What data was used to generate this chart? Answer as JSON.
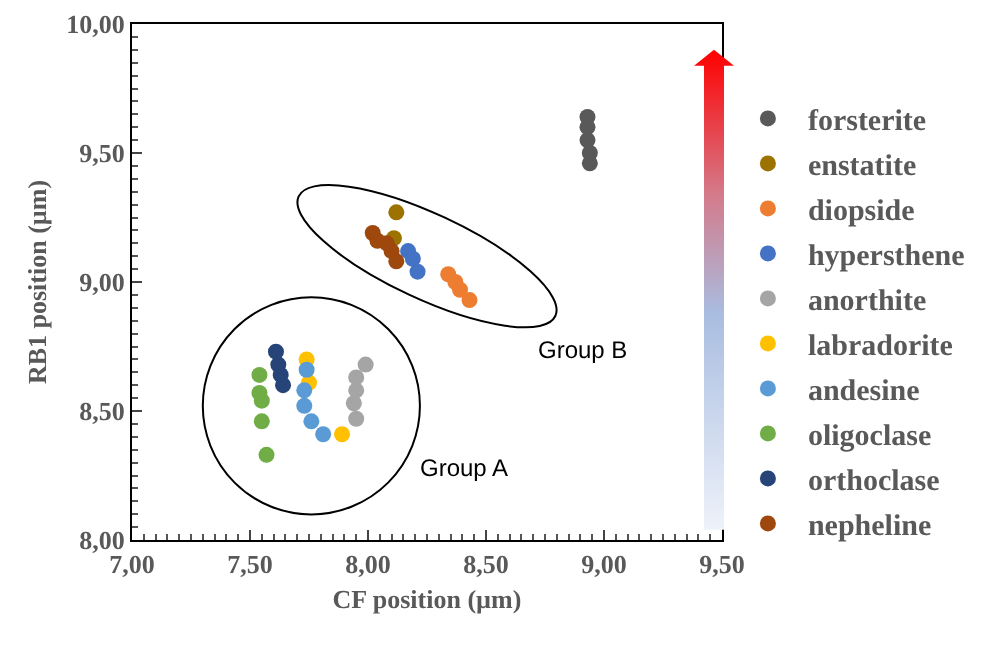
{
  "chart_data": {
    "type": "scatter",
    "xlabel": "CF position (µm)",
    "ylabel": "RB1 position (µm)",
    "xlim": [
      7,
      9.5
    ],
    "ylim": [
      8,
      10
    ],
    "xticks": [
      {
        "value": 7,
        "label": "7,00"
      },
      {
        "value": 7.5,
        "label": "7,50"
      },
      {
        "value": 8,
        "label": "8,00"
      },
      {
        "value": 8.5,
        "label": "8,50"
      },
      {
        "value": 9,
        "label": "9,00"
      },
      {
        "value": 9.5,
        "label": "9,50"
      }
    ],
    "yticks": [
      {
        "value": 8,
        "label": "8,00"
      },
      {
        "value": 8.5,
        "label": "8,50"
      },
      {
        "value": 9,
        "label": "9,00"
      },
      {
        "value": 9.5,
        "label": "9,50"
      },
      {
        "value": 10,
        "label": "10,00"
      }
    ],
    "grid": false,
    "legend": "right",
    "marker": "circle",
    "annotations": [
      "Group A",
      "Group B"
    ],
    "series": [
      {
        "name": "forsterite",
        "color": "#595959",
        "x": [
          8.93,
          8.93,
          8.93,
          8.94,
          8.94
        ],
        "values": [
          9.64,
          9.6,
          9.55,
          9.5,
          9.46
        ]
      },
      {
        "name": "enstatite",
        "color": "#9c7300",
        "x": [
          8.12,
          8.11
        ],
        "values": [
          9.27,
          9.17
        ]
      },
      {
        "name": "diopside",
        "color": "#ed7d31",
        "x": [
          8.34,
          8.37,
          8.39,
          8.41,
          8.43
        ],
        "values": [
          9.03,
          9.0,
          8.97,
          null,
          8.93
        ]
      },
      {
        "name": "hypersthene",
        "color": "#4472c4",
        "x": [
          8.17,
          8.19,
          8.2,
          8.21
        ],
        "values": [
          9.12,
          9.09,
          null,
          9.04
        ]
      },
      {
        "name": "anorthite",
        "color": "#a5a5a5",
        "x": [
          7.99,
          7.95,
          7.95,
          7.94,
          7.95
        ],
        "values": [
          8.68,
          8.63,
          8.58,
          8.53,
          8.47
        ]
      },
      {
        "name": "labradorite",
        "color": "#ffc000",
        "x": [
          7.74,
          7.75,
          7.76,
          7.79,
          7.89
        ],
        "values": [
          8.7,
          8.61,
          null,
          null,
          8.41
        ]
      },
      {
        "name": "andesine",
        "color": "#5b9bd5",
        "x": [
          7.74,
          7.73,
          7.73,
          7.76,
          7.81
        ],
        "values": [
          8.66,
          8.58,
          8.52,
          8.46,
          8.41
        ]
      },
      {
        "name": "oligoclase",
        "color": "#70ad47",
        "x": [
          7.54,
          7.54,
          7.55,
          7.55,
          7.57
        ],
        "values": [
          8.64,
          8.57,
          8.54,
          8.46,
          8.33
        ]
      },
      {
        "name": "orthoclase",
        "color": "#264478",
        "x": [
          7.61,
          7.62,
          7.63,
          7.64
        ],
        "values": [
          8.73,
          8.68,
          8.64,
          8.6
        ]
      },
      {
        "name": "nepheline",
        "color": "#9e480e",
        "x": [
          8.02,
          8.04,
          8.08,
          8.1,
          8.12
        ],
        "values": [
          9.19,
          9.16,
          9.15,
          9.12,
          9.08
        ]
      }
    ]
  }
}
